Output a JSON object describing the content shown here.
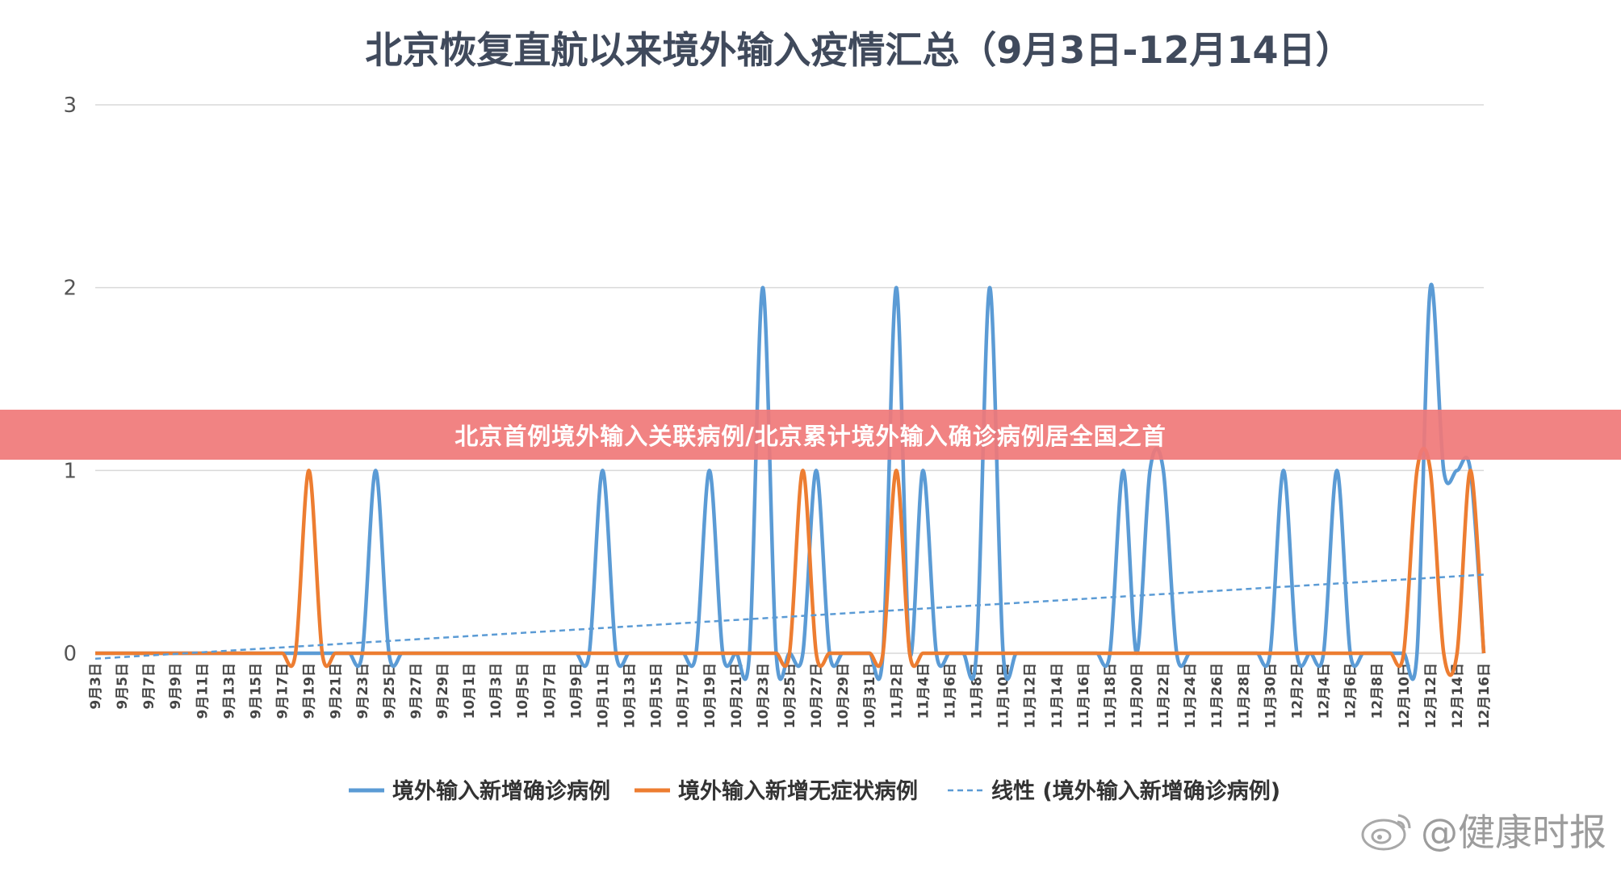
{
  "banner": {
    "text": "北京首例境外输入关联病例/北京累计境外输入确诊病例居全国之首"
  },
  "watermark": {
    "text": "@健康时报"
  },
  "colors": {
    "blue": "#5b9bd5",
    "orange": "#ed7d31",
    "grid": "#d9d9d9"
  },
  "chart_data": {
    "type": "line",
    "title": "北京恢复直航以来境外输入疫情汇总（9月3日-12月14日）",
    "ylim": [
      0,
      3
    ],
    "yticks": [
      0,
      1,
      2,
      3
    ],
    "grid": true,
    "legend_position": "bottom",
    "x": [
      "9月3日",
      "9月4日",
      "9月5日",
      "9月6日",
      "9月7日",
      "9月8日",
      "9月9日",
      "9月10日",
      "9月11日",
      "9月12日",
      "9月13日",
      "9月14日",
      "9月15日",
      "9月16日",
      "9月17日",
      "9月18日",
      "9月19日",
      "9月20日",
      "9月21日",
      "9月22日",
      "9月23日",
      "9月24日",
      "9月25日",
      "9月26日",
      "9月27日",
      "9月28日",
      "9月29日",
      "9月30日",
      "10月1日",
      "10月2日",
      "10月3日",
      "10月4日",
      "10月5日",
      "10月6日",
      "10月7日",
      "10月8日",
      "10月9日",
      "10月10日",
      "10月11日",
      "10月12日",
      "10月13日",
      "10月14日",
      "10月15日",
      "10月16日",
      "10月17日",
      "10月18日",
      "10月19日",
      "10月20日",
      "10月21日",
      "10月22日",
      "10月23日",
      "10月24日",
      "10月25日",
      "10月26日",
      "10月27日",
      "10月28日",
      "10月29日",
      "10月30日",
      "10月31日",
      "11月1日",
      "11月2日",
      "11月3日",
      "11月4日",
      "11月5日",
      "11月6日",
      "11月7日",
      "11月8日",
      "11月9日",
      "11月10日",
      "11月11日",
      "11月12日",
      "11月13日",
      "11月14日",
      "11月15日",
      "11月16日",
      "11月17日",
      "11月18日",
      "11月19日",
      "11月20日",
      "11月21日",
      "11月22日",
      "11月23日",
      "11月24日",
      "11月25日",
      "11月26日",
      "11月27日",
      "11月28日",
      "11月29日",
      "11月30日",
      "12月1日",
      "12月2日",
      "12月3日",
      "12月4日",
      "12月5日",
      "12月6日",
      "12月7日",
      "12月8日",
      "12月9日",
      "12月10日",
      "12月11日",
      "12月12日",
      "12月13日",
      "12月14日",
      "12月15日",
      "12月16日"
    ],
    "xticks": [
      "9月3日",
      "9月5日",
      "9月7日",
      "9月9日",
      "9月11日",
      "9月13日",
      "9月15日",
      "9月17日",
      "9月19日",
      "9月21日",
      "9月23日",
      "9月25日",
      "9月27日",
      "9月29日",
      "10月1日",
      "10月3日",
      "10月5日",
      "10月7日",
      "10月9日",
      "10月11日",
      "10月13日",
      "10月15日",
      "10月17日",
      "10月19日",
      "10月21日",
      "10月23日",
      "10月25日",
      "10月27日",
      "10月29日",
      "10月31日",
      "11月2日",
      "11月4日",
      "11月6日",
      "11月8日",
      "11月10日",
      "11月12日",
      "11月14日",
      "11月16日",
      "11月18日",
      "11月20日",
      "11月22日",
      "11月24日",
      "11月26日",
      "11月28日",
      "11月30日",
      "12月2日",
      "12月4日",
      "12月6日",
      "12月8日",
      "12月10日",
      "12月12日",
      "12月14日",
      "12月16日"
    ],
    "series": [
      {
        "name": "境外输入新增确诊病例",
        "color": "#5b9bd5",
        "style": "solid",
        "values": [
          0,
          0,
          0,
          0,
          0,
          0,
          0,
          0,
          0,
          0,
          0,
          0,
          0,
          0,
          0,
          0,
          0,
          0,
          0,
          0,
          0,
          1,
          0,
          0,
          0,
          0,
          0,
          0,
          0,
          0,
          0,
          0,
          0,
          0,
          0,
          0,
          0,
          0,
          1,
          0,
          0,
          0,
          0,
          0,
          0,
          0,
          1,
          0,
          0,
          0,
          2,
          0,
          0,
          0,
          1,
          0,
          0,
          0,
          0,
          0,
          2,
          0,
          1,
          0,
          0,
          0,
          0,
          2,
          0,
          0,
          0,
          0,
          0,
          0,
          0,
          0,
          0,
          1,
          0,
          1,
          1,
          0,
          0,
          0,
          0,
          0,
          0,
          0,
          0,
          1,
          0,
          0,
          0,
          1,
          0,
          0,
          0,
          0,
          0,
          0,
          2,
          1,
          1,
          1,
          0
        ]
      },
      {
        "name": "境外输入新增无症状病例",
        "color": "#ed7d31",
        "style": "solid",
        "values": [
          0,
          0,
          0,
          0,
          0,
          0,
          0,
          0,
          0,
          0,
          0,
          0,
          0,
          0,
          0,
          0,
          1,
          0,
          0,
          0,
          0,
          0,
          0,
          0,
          0,
          0,
          0,
          0,
          0,
          0,
          0,
          0,
          0,
          0,
          0,
          0,
          0,
          0,
          0,
          0,
          0,
          0,
          0,
          0,
          0,
          0,
          0,
          0,
          0,
          0,
          0,
          0,
          0,
          1,
          0,
          0,
          0,
          0,
          0,
          0,
          1,
          0,
          0,
          0,
          0,
          0,
          0,
          0,
          0,
          0,
          0,
          0,
          0,
          0,
          0,
          0,
          0,
          0,
          0,
          0,
          0,
          0,
          0,
          0,
          0,
          0,
          0,
          0,
          0,
          0,
          0,
          0,
          0,
          0,
          0,
          0,
          0,
          0,
          0,
          1,
          1,
          0,
          0,
          1,
          0
        ]
      },
      {
        "name": "线性 (境外输入新增确诊病例)",
        "color": "#5b9bd5",
        "style": "dashed",
        "trend": [
          -0.03,
          0.43
        ]
      }
    ]
  }
}
